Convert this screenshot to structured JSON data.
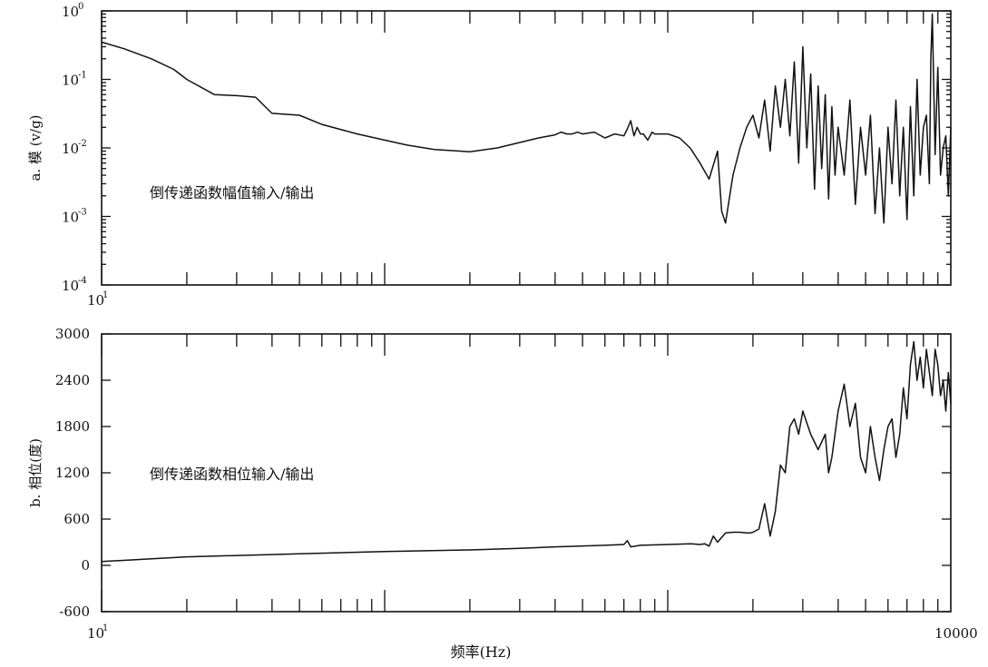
{
  "x_tick_labels": {
    "start_base": "10",
    "start_exp": "1",
    "end": "10000"
  },
  "x_axis_label": "频率(Hz)",
  "chart_data": [
    {
      "type": "line",
      "panel": "a",
      "ylabel": "a. 模 (v/g)",
      "annotation": "倒传递函数幅值输入/输出",
      "x_scale": "log",
      "y_scale": "log",
      "xlim": [
        10,
        10000
      ],
      "ylim": [
        0.0001,
        1
      ],
      "yticks": [
        {
          "base": "10",
          "exp": "0",
          "value": 1
        },
        {
          "base": "10",
          "exp": "-1",
          "value": 0.1
        },
        {
          "base": "10",
          "exp": "-2",
          "value": 0.01
        },
        {
          "base": "10",
          "exp": "-3",
          "value": 0.001
        },
        {
          "base": "10",
          "exp": "-4",
          "value": 0.0001
        }
      ],
      "x": [
        10,
        12,
        15,
        18,
        20,
        25,
        30,
        35,
        40,
        50,
        60,
        80,
        100,
        120,
        150,
        200,
        250,
        300,
        350,
        400,
        420,
        440,
        460,
        480,
        500,
        550,
        600,
        650,
        700,
        720,
        740,
        760,
        780,
        800,
        820,
        850,
        880,
        900,
        950,
        1000,
        1100,
        1200,
        1300,
        1400,
        1500,
        1550,
        1600,
        1700,
        1800,
        1900,
        2000,
        2100,
        2200,
        2300,
        2400,
        2500,
        2600,
        2700,
        2800,
        2900,
        3000,
        3100,
        3200,
        3300,
        3400,
        3500,
        3600,
        3700,
        3800,
        3900,
        4000,
        4200,
        4400,
        4600,
        4800,
        5000,
        5200,
        5400,
        5600,
        5800,
        6000,
        6200,
        6400,
        6600,
        6800,
        7000,
        7200,
        7400,
        7600,
        7800,
        8000,
        8200,
        8400,
        8500,
        8600,
        8800,
        9000,
        9200,
        9400,
        9600,
        9800,
        10000
      ],
      "values": [
        0.35,
        0.28,
        0.2,
        0.14,
        0.1,
        0.06,
        0.058,
        0.055,
        0.032,
        0.03,
        0.022,
        0.016,
        0.013,
        0.011,
        0.0095,
        0.0088,
        0.01,
        0.012,
        0.014,
        0.0155,
        0.017,
        0.016,
        0.016,
        0.017,
        0.016,
        0.017,
        0.014,
        0.016,
        0.015,
        0.019,
        0.025,
        0.015,
        0.02,
        0.016,
        0.016,
        0.013,
        0.017,
        0.016,
        0.016,
        0.016,
        0.014,
        0.01,
        0.006,
        0.0035,
        0.009,
        0.0012,
        0.0008,
        0.004,
        0.01,
        0.02,
        0.03,
        0.014,
        0.05,
        0.009,
        0.08,
        0.02,
        0.1,
        0.015,
        0.18,
        0.006,
        0.3,
        0.01,
        0.12,
        0.0025,
        0.08,
        0.005,
        0.06,
        0.0018,
        0.04,
        0.004,
        0.02,
        0.004,
        0.05,
        0.0015,
        0.02,
        0.004,
        0.03,
        0.0011,
        0.01,
        0.0008,
        0.02,
        0.003,
        0.05,
        0.002,
        0.02,
        0.0009,
        0.04,
        0.002,
        0.1,
        0.004,
        0.02,
        0.03,
        0.003,
        0.2,
        0.9,
        0.008,
        0.15,
        0.004,
        0.01,
        0.015,
        0.002,
        0.02
      ]
    },
    {
      "type": "line",
      "panel": "b",
      "ylabel": "b. 相位(度)",
      "annotation": "倒传递函数相位输入/输出",
      "x_scale": "log",
      "y_scale": "linear",
      "xlim": [
        10,
        10000
      ],
      "ylim": [
        -600,
        3000
      ],
      "yticks": [
        {
          "label": "3000",
          "value": 3000
        },
        {
          "label": "2400",
          "value": 2400
        },
        {
          "label": "1800",
          "value": 1800
        },
        {
          "label": "1200",
          "value": 1200
        },
        {
          "label": "600",
          "value": 600
        },
        {
          "label": "0",
          "value": 0
        },
        {
          "label": "-600",
          "value": -600
        }
      ],
      "x": [
        10,
        20,
        50,
        100,
        200,
        300,
        400,
        600,
        700,
        720,
        740,
        800,
        1000,
        1200,
        1300,
        1350,
        1400,
        1450,
        1500,
        1600,
        1700,
        1800,
        1900,
        1950,
        2000,
        2100,
        2200,
        2300,
        2400,
        2500,
        2600,
        2700,
        2800,
        2900,
        3000,
        3200,
        3400,
        3600,
        3700,
        3800,
        4000,
        4200,
        4400,
        4600,
        4800,
        5000,
        5200,
        5400,
        5600,
        5800,
        6000,
        6200,
        6400,
        6600,
        6800,
        7000,
        7200,
        7400,
        7600,
        7800,
        8000,
        8200,
        8400,
        8600,
        8800,
        9000,
        9200,
        9400,
        9600,
        9800,
        10000
      ],
      "values": [
        50,
        110,
        150,
        180,
        200,
        220,
        240,
        260,
        270,
        320,
        240,
        260,
        270,
        280,
        270,
        280,
        250,
        380,
        300,
        420,
        430,
        430,
        420,
        420,
        430,
        470,
        800,
        380,
        700,
        1300,
        1200,
        1800,
        1900,
        1700,
        2000,
        1700,
        1500,
        1700,
        1200,
        1400,
        2000,
        2350,
        1800,
        2100,
        1400,
        1200,
        1800,
        1400,
        1100,
        1500,
        1800,
        1900,
        1400,
        1700,
        2300,
        1900,
        2600,
        2900,
        2400,
        2700,
        2300,
        2800,
        2500,
        2200,
        2800,
        2600,
        2200,
        2400,
        2000,
        2500,
        2100
      ]
    }
  ]
}
